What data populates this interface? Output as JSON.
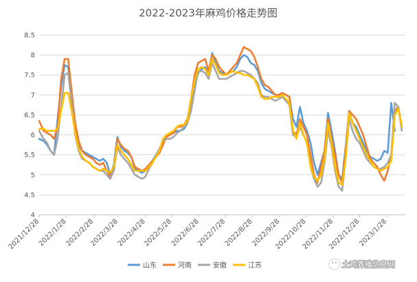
{
  "chart_data": {
    "type": "line",
    "title": "2022-2023年麻鸡价格走势图",
    "xlabel": "",
    "ylabel": "",
    "ylim": [
      4,
      8.5
    ],
    "yticks": [
      "4",
      "4.5",
      "5",
      "5.5",
      "6",
      "6.5",
      "7",
      "7.5",
      "8",
      "8.5"
    ],
    "x_tick_labels": [
      "2021/12/28",
      "2022/1/28",
      "2022/2/28",
      "2022/3/28",
      "2022/4/28",
      "2022/5/28",
      "2022/6/28",
      "2022/7/28",
      "2022/8/28",
      "2022/9/28",
      "2022/10/28",
      "2022/11/28",
      "2022/12/28",
      "2023/1/28"
    ],
    "x_tick_dates": [
      "2021-12-28",
      "2022-01-28",
      "2022-02-28",
      "2022-03-28",
      "2022-04-28",
      "2022-05-28",
      "2022-06-28",
      "2022-07-28",
      "2022-08-28",
      "2022-09-28",
      "2022-10-28",
      "2022-11-28",
      "2022-12-28",
      "2023-01-28"
    ],
    "x": [
      "2021-12-28",
      "2022-01-02",
      "2022-01-06",
      "2022-01-10",
      "2022-01-14",
      "2022-01-18",
      "2022-01-22",
      "2022-01-26",
      "2022-01-30",
      "2022-02-03",
      "2022-02-07",
      "2022-02-11",
      "2022-02-15",
      "2022-02-19",
      "2022-02-23",
      "2022-02-27",
      "2022-03-03",
      "2022-03-07",
      "2022-03-11",
      "2022-03-15",
      "2022-03-19",
      "2022-03-23",
      "2022-03-27",
      "2022-03-31",
      "2022-04-04",
      "2022-04-08",
      "2022-04-12",
      "2022-04-16",
      "2022-04-20",
      "2022-04-24",
      "2022-04-28",
      "2022-05-02",
      "2022-05-06",
      "2022-05-10",
      "2022-05-14",
      "2022-05-18",
      "2022-05-22",
      "2022-05-26",
      "2022-05-30",
      "2022-06-03",
      "2022-06-07",
      "2022-06-11",
      "2022-06-15",
      "2022-06-19",
      "2022-06-23",
      "2022-06-27",
      "2022-07-01",
      "2022-07-05",
      "2022-07-09",
      "2022-07-13",
      "2022-07-17",
      "2022-07-21",
      "2022-07-25",
      "2022-07-29",
      "2022-08-02",
      "2022-08-06",
      "2022-08-10",
      "2022-08-14",
      "2022-08-18",
      "2022-08-22",
      "2022-08-26",
      "2022-08-30",
      "2022-09-03",
      "2022-09-07",
      "2022-09-11",
      "2022-09-15",
      "2022-09-19",
      "2022-09-23",
      "2022-09-27",
      "2022-10-01",
      "2022-10-05",
      "2022-10-09",
      "2022-10-13",
      "2022-10-17",
      "2022-10-21",
      "2022-10-25",
      "2022-10-29",
      "2022-11-02",
      "2022-11-06",
      "2022-11-10",
      "2022-11-14",
      "2022-11-18",
      "2022-11-22",
      "2022-11-26",
      "2022-11-30",
      "2022-12-04",
      "2022-12-08",
      "2022-12-12",
      "2022-12-16",
      "2022-12-20",
      "2022-12-24",
      "2022-12-28",
      "2023-01-01",
      "2023-01-05",
      "2023-01-09",
      "2023-01-13",
      "2023-01-17",
      "2023-01-21",
      "2023-01-25",
      "2023-01-29",
      "2023-02-02",
      "2023-02-06",
      "2023-02-10",
      "2023-02-14",
      "2023-02-18"
    ],
    "series": [
      {
        "name": "山东",
        "color": "#5b9bd5",
        "values": [
          5.9,
          5.85,
          5.75,
          5.6,
          5.5,
          6.4,
          7.2,
          7.75,
          7.7,
          7.0,
          6.2,
          5.75,
          5.6,
          5.55,
          5.5,
          5.45,
          5.4,
          5.35,
          5.4,
          5.3,
          5.0,
          5.25,
          5.95,
          5.7,
          5.6,
          5.55,
          5.45,
          5.15,
          5.1,
          5.05,
          5.1,
          5.2,
          5.35,
          5.5,
          5.6,
          5.8,
          5.95,
          6.0,
          6.05,
          6.1,
          6.1,
          6.15,
          6.3,
          6.7,
          7.2,
          7.55,
          7.65,
          7.7,
          7.55,
          8.05,
          7.8,
          7.6,
          7.55,
          7.5,
          7.55,
          7.6,
          7.7,
          7.9,
          8.0,
          7.95,
          7.8,
          7.75,
          7.6,
          7.3,
          7.15,
          7.1,
          7.05,
          7.0,
          7.0,
          7.05,
          7.0,
          6.95,
          6.4,
          6.2,
          6.7,
          6.3,
          6.1,
          5.8,
          5.3,
          5.0,
          5.3,
          5.6,
          6.55,
          6.1,
          5.6,
          5.0,
          4.9,
          5.7,
          6.6,
          6.3,
          6.2,
          6.0,
          5.8,
          5.6,
          5.45,
          5.4,
          5.35,
          5.4,
          5.6,
          5.55,
          6.8,
          6.1,
          null,
          null,
          null
        ]
      },
      {
        "name": "河南",
        "color": "#ed7d31",
        "values": [
          6.35,
          6.1,
          6.05,
          6.0,
          5.9,
          6.2,
          7.4,
          7.9,
          7.9,
          7.1,
          6.3,
          5.85,
          5.6,
          5.5,
          5.45,
          5.4,
          5.3,
          5.25,
          5.3,
          5.1,
          4.95,
          5.1,
          5.9,
          5.75,
          5.65,
          5.6,
          5.45,
          5.2,
          5.15,
          5.1,
          5.15,
          5.25,
          5.35,
          5.45,
          5.55,
          5.75,
          5.95,
          6.0,
          6.05,
          6.2,
          6.2,
          6.25,
          6.4,
          6.9,
          7.5,
          7.8,
          7.85,
          7.9,
          7.6,
          8.0,
          7.9,
          7.7,
          7.6,
          7.5,
          7.6,
          7.7,
          7.8,
          8.0,
          8.2,
          8.15,
          8.1,
          7.95,
          7.7,
          7.4,
          7.25,
          7.2,
          7.1,
          7.0,
          7.0,
          7.05,
          7.0,
          6.95,
          6.1,
          6.0,
          6.4,
          6.2,
          6.0,
          5.5,
          5.0,
          4.8,
          5.2,
          5.6,
          6.4,
          5.9,
          5.5,
          5.0,
          4.8,
          5.6,
          6.6,
          6.5,
          6.4,
          6.2,
          6.0,
          5.7,
          5.4,
          5.3,
          5.2,
          5.0,
          4.85,
          5.1,
          5.5,
          6.6,
          6.7,
          6.2,
          null
        ]
      },
      {
        "name": "安徽",
        "color": "#a5a5a5",
        "values": [
          6.1,
          5.9,
          5.8,
          5.6,
          5.5,
          5.9,
          6.7,
          7.5,
          7.55,
          6.8,
          6.0,
          5.6,
          5.4,
          5.35,
          5.3,
          5.2,
          5.15,
          5.1,
          5.1,
          5.0,
          4.9,
          5.1,
          5.7,
          5.5,
          5.4,
          5.3,
          5.15,
          5.0,
          4.95,
          4.9,
          4.95,
          5.15,
          5.3,
          5.5,
          5.65,
          5.85,
          5.9,
          5.9,
          5.95,
          6.05,
          6.1,
          6.2,
          6.3,
          6.6,
          7.1,
          7.6,
          7.6,
          7.55,
          7.4,
          7.8,
          7.6,
          7.4,
          7.4,
          7.4,
          7.45,
          7.5,
          7.55,
          7.6,
          7.6,
          7.55,
          7.5,
          7.4,
          7.3,
          7.0,
          6.95,
          6.95,
          6.9,
          6.85,
          6.9,
          6.95,
          6.85,
          6.75,
          6.0,
          5.95,
          6.2,
          6.0,
          5.8,
          5.2,
          4.9,
          4.7,
          4.8,
          5.3,
          6.1,
          5.7,
          5.1,
          4.7,
          4.6,
          5.4,
          6.4,
          6.1,
          5.9,
          5.8,
          5.6,
          5.4,
          5.3,
          5.2,
          5.15,
          5.15,
          5.2,
          5.3,
          5.5,
          6.8,
          6.7,
          6.1,
          null
        ]
      },
      {
        "name": "江苏",
        "color": "#ffc000",
        "values": [
          6.15,
          6.15,
          6.1,
          6.1,
          6.1,
          6.15,
          6.6,
          7.05,
          7.05,
          6.6,
          6.05,
          5.65,
          5.45,
          5.35,
          5.3,
          5.2,
          5.15,
          5.1,
          5.15,
          5.1,
          5.05,
          5.2,
          5.75,
          5.6,
          5.5,
          5.4,
          5.25,
          5.1,
          5.1,
          5.1,
          5.1,
          5.2,
          5.3,
          5.45,
          5.6,
          5.9,
          6.0,
          6.05,
          6.1,
          6.2,
          6.25,
          6.25,
          6.35,
          6.9,
          7.35,
          7.65,
          7.7,
          7.65,
          7.5,
          7.9,
          7.75,
          7.55,
          7.5,
          7.5,
          7.55,
          7.6,
          7.55,
          7.55,
          7.5,
          7.5,
          7.45,
          7.4,
          7.2,
          6.95,
          6.9,
          6.9,
          6.95,
          6.95,
          6.95,
          7.0,
          6.9,
          6.8,
          6.1,
          5.9,
          6.3,
          6.0,
          5.8,
          5.2,
          4.95,
          4.85,
          5.0,
          5.4,
          6.3,
          5.8,
          5.2,
          4.8,
          4.75,
          5.4,
          6.55,
          6.3,
          6.1,
          5.9,
          5.7,
          5.5,
          5.35,
          5.2,
          5.15,
          5.1,
          5.15,
          5.2,
          5.35,
          6.5,
          6.65,
          6.2,
          null
        ]
      }
    ]
  },
  "watermark": {
    "text": "土鸡养殖信息网"
  }
}
